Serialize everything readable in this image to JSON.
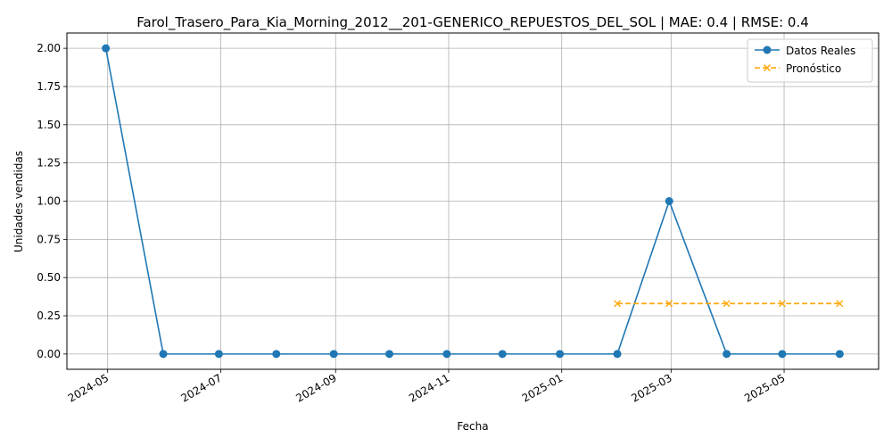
{
  "chart_data": {
    "type": "line",
    "title": "Farol_Trasero_Para_Kia_Morning_2012__201-GENERICO_REPUESTOS_DEL_SOL | MAE: 0.4 | RMSE: 0.4",
    "xlabel": "Fecha",
    "ylabel": "Unidades vendidas",
    "x_type": "date",
    "xlim": [
      "2024-04-09",
      "2025-06-21"
    ],
    "ylim": [
      -0.1,
      2.1
    ],
    "x_ticks": [
      "2024-05-01",
      "2024-07-01",
      "2024-09-01",
      "2024-11-01",
      "2025-01-01",
      "2025-03-01",
      "2025-05-01"
    ],
    "x_tick_labels": [
      "2024-05",
      "2024-07",
      "2024-09",
      "2024-11",
      "2025-01",
      "2025-03",
      "2025-05"
    ],
    "y_ticks": [
      0.0,
      0.25,
      0.5,
      0.75,
      1.0,
      1.25,
      1.5,
      1.75,
      2.0
    ],
    "y_tick_labels": [
      "0.00",
      "0.25",
      "0.50",
      "0.75",
      "1.00",
      "1.25",
      "1.50",
      "1.75",
      "2.00"
    ],
    "grid": true,
    "legend_position": "top-right",
    "series": [
      {
        "name": "Datos Reales",
        "color": "#1f77b4",
        "style": "solid",
        "marker": "circle",
        "x": [
          "2024-04-30",
          "2024-05-31",
          "2024-06-30",
          "2024-07-31",
          "2024-08-31",
          "2024-09-30",
          "2024-10-31",
          "2024-11-30",
          "2024-12-31",
          "2025-01-31",
          "2025-02-28",
          "2025-03-31",
          "2025-04-30",
          "2025-05-31"
        ],
        "y": [
          2,
          0,
          0,
          0,
          0,
          0,
          0,
          0,
          0,
          0,
          1,
          0,
          0,
          0
        ]
      },
      {
        "name": "Pronóstico",
        "color": "#ffa500",
        "style": "dashed",
        "marker": "x",
        "x": [
          "2025-01-31",
          "2025-02-28",
          "2025-03-31",
          "2025-04-30",
          "2025-05-31"
        ],
        "y": [
          0.33,
          0.33,
          0.33,
          0.33,
          0.33
        ]
      }
    ]
  }
}
